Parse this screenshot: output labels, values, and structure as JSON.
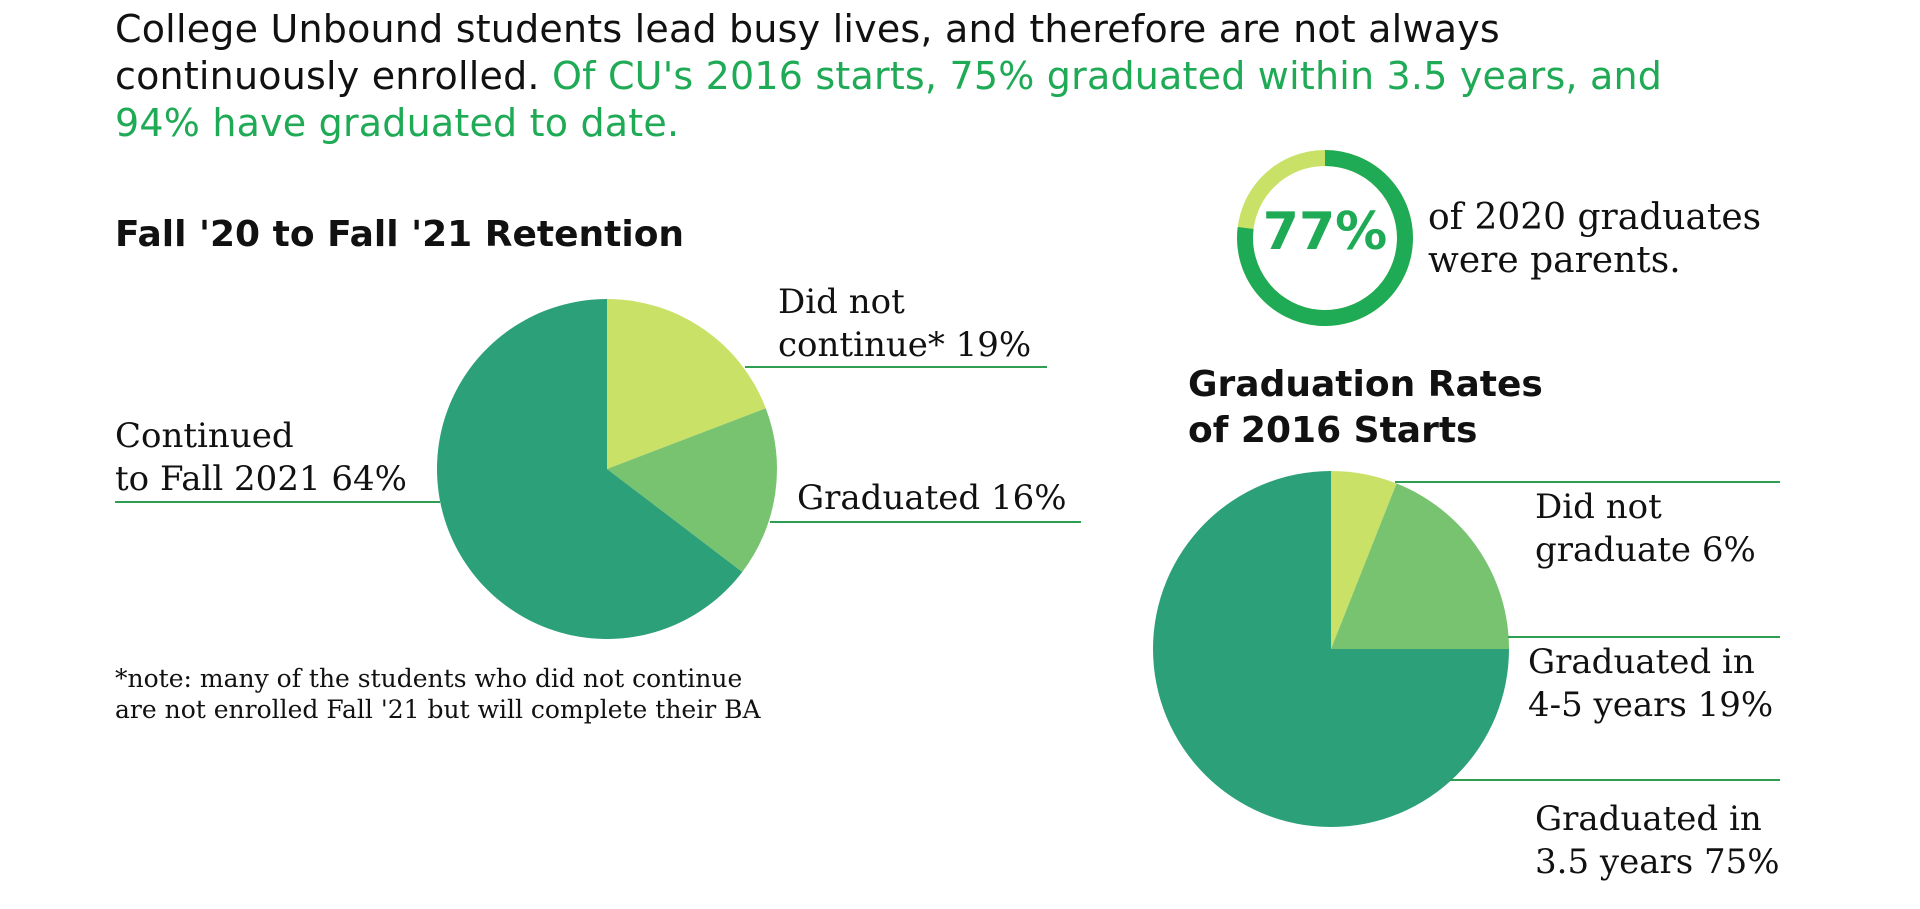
{
  "headline": {
    "text": "College Unbound students lead busy lives, and therefore are not always continuously enrolled.",
    "highlight": "Of CU's 2016 starts, 75% graduated within 3.5 years, and 94% have graduated to date."
  },
  "colors": {
    "dark_green": "#2ca078",
    "mid_green": "#78c36f",
    "light_green": "#c9e167",
    "accent": "#1faa55",
    "leader": "#2e9e52"
  },
  "stat": {
    "value": "77%",
    "line1": "of 2020 graduates",
    "line2": "were parents.",
    "fraction": 0.77
  },
  "note": {
    "line1": "*note: many of the students who did not continue",
    "line2": " are not enrolled Fall '21 but will complete their BA"
  },
  "chart_data": [
    {
      "type": "pie",
      "title": "Fall '20 to Fall '21 Retention",
      "categories": [
        "Did not continue*",
        "Graduated",
        "Continued to Fall 2021"
      ],
      "values": [
        19,
        16,
        64
      ],
      "labels": [
        {
          "line1": "Did not",
          "line2": "continue* 19%"
        },
        {
          "line1": "Graduated 16%"
        },
        {
          "line1": "Continued",
          "line2": "to Fall 2021 64%"
        }
      ],
      "colors": [
        "#c9e167",
        "#78c36f",
        "#2ca078"
      ]
    },
    {
      "type": "pie",
      "title_line1": "Graduation Rates",
      "title_line2": "of 2016 Starts",
      "categories": [
        "Did not graduate",
        "Graduated in 4-5 years",
        "Graduated in 3.5 years"
      ],
      "values": [
        6,
        19,
        75
      ],
      "labels": [
        {
          "line1": "Did not",
          "line2": "graduate 6%"
        },
        {
          "line1": "Graduated in",
          "line2": "4-5 years 19%"
        },
        {
          "line1": "Graduated in",
          "line2": "3.5 years 75%"
        }
      ],
      "colors": [
        "#c9e167",
        "#78c36f",
        "#2ca078"
      ]
    }
  ]
}
